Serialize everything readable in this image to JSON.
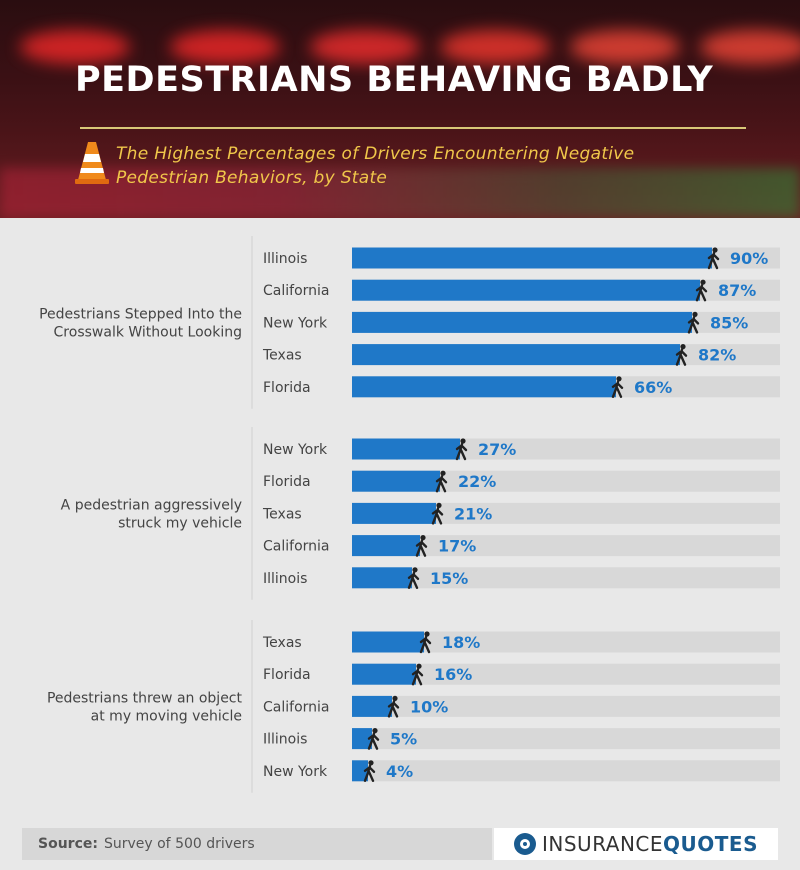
{
  "header": {
    "title": "PEDESTRIANS BEHAVING BADLY",
    "subtitle_line1": "The Highest Percentages of Drivers Encountering Negative",
    "subtitle_line2": "Pedestrian Behaviors, by State"
  },
  "colors": {
    "bar": "#1f78c8",
    "track": "#d8d8d8",
    "value_text": "#1f78c8",
    "label_text": "#444444",
    "subtitle": "#f0c74a"
  },
  "chart_data": {
    "type": "bar",
    "orientation": "horizontal",
    "unit": "%",
    "xlim": [
      0,
      100
    ],
    "groups": [
      {
        "name_lines": [
          "Pedestrians Stepped Into the",
          "Crosswalk Without Looking"
        ],
        "categories": [
          "Illinois",
          "California",
          "New York",
          "Texas",
          "Florida"
        ],
        "values": [
          90,
          87,
          85,
          82,
          66
        ]
      },
      {
        "name_lines": [
          "A pedestrian aggressively",
          "struck my vehicle"
        ],
        "categories": [
          "New York",
          "Florida",
          "Texas",
          "California",
          "Illinois"
        ],
        "values": [
          27,
          22,
          21,
          17,
          15
        ]
      },
      {
        "name_lines": [
          "Pedestrians threw an object",
          "at my moving vehicle"
        ],
        "categories": [
          "Texas",
          "Florida",
          "California",
          "Illinois",
          "New York"
        ],
        "values": [
          18,
          16,
          10,
          5,
          4
        ]
      }
    ],
    "marker_icon": "pedestrian-walking-icon"
  },
  "footer": {
    "source_label": "Source:",
    "source_text": "Survey of 500 drivers",
    "brand_part1": "INSURANCE",
    "brand_part2": "QUOTES",
    "logo_icon": "insurancequotes-logo-icon"
  }
}
